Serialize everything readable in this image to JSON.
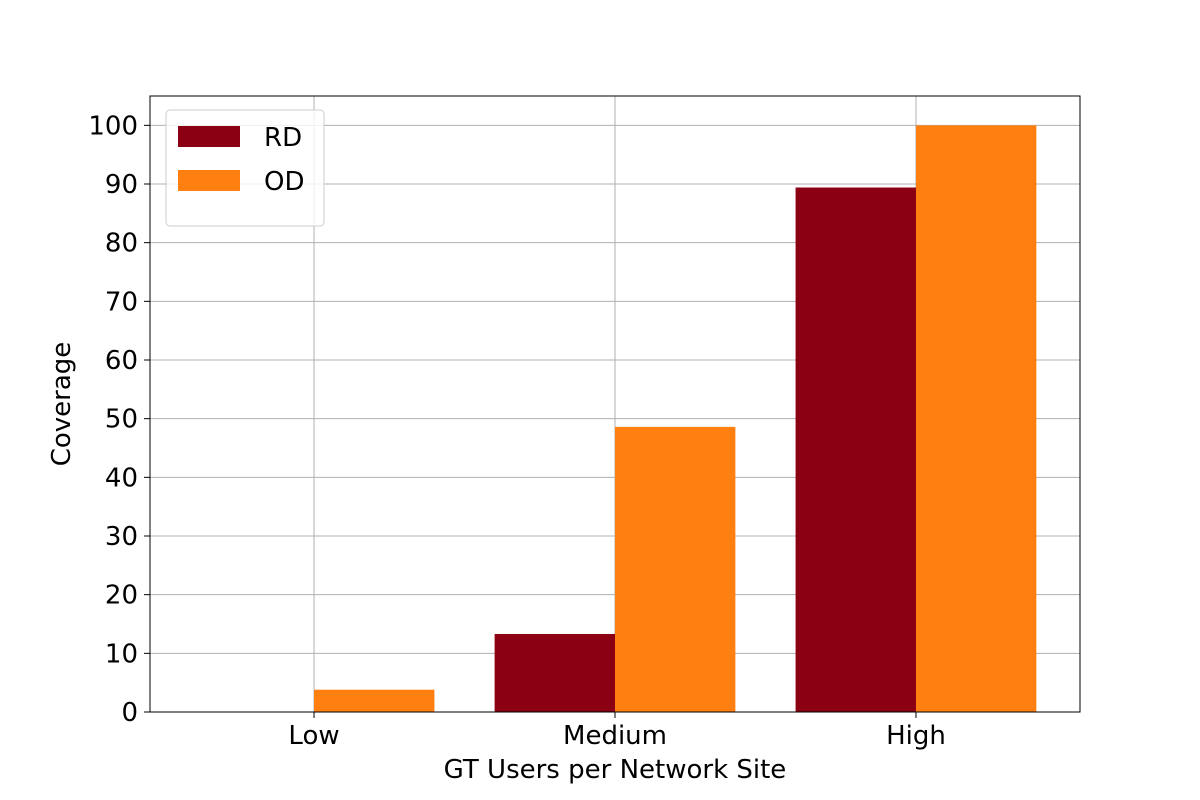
{
  "chart_data": {
    "type": "bar",
    "x_label": "GT Users per Network Site",
    "y_label": "Coverage",
    "categories": [
      "Low",
      "Medium",
      "High"
    ],
    "series": [
      {
        "name": "RD",
        "color": "#8b0012",
        "values": [
          0,
          13.3,
          89.4
        ]
      },
      {
        "name": "OD",
        "color": "#ff8011",
        "values": [
          3.8,
          48.6,
          100
        ]
      }
    ],
    "ylim": [
      0,
      105
    ],
    "yticks": [
      0,
      10,
      20,
      30,
      40,
      50,
      60,
      70,
      80,
      90,
      100
    ],
    "grid": true,
    "legend": "upper-left"
  }
}
